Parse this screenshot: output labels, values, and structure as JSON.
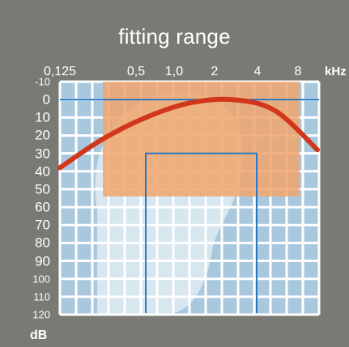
{
  "title": "fitting range",
  "x_axis": {
    "labels": [
      "0,125",
      "0,5",
      "1,0",
      "2",
      "4",
      "8"
    ],
    "unit": "kHz"
  },
  "y_axis": {
    "labels": [
      "-10",
      "0",
      "10",
      "20",
      "30",
      "40",
      "50",
      "60",
      "70",
      "80",
      "90",
      "100",
      "110",
      "120"
    ],
    "unit": "dB"
  },
  "colors": {
    "background": "#7a7a74",
    "grid_cell": "#a9c8dd",
    "fitting_range": "#f0a46c",
    "curve": "#d2361b",
    "lines": "#2a78c0"
  },
  "fitting_range": {
    "freq_khz": [
      0.25,
      6
    ],
    "level_db": [
      -10,
      54
    ]
  },
  "reference_line_db": 0,
  "ear_canal_bracket": {
    "freq_khz": [
      0.5,
      3
    ],
    "top_db": 30,
    "bottom_db": 120
  },
  "curve_points": [
    [
      0.125,
      38
    ],
    [
      0.25,
      22
    ],
    [
      0.5,
      10
    ],
    [
      1,
      2
    ],
    [
      2,
      0
    ],
    [
      4,
      6
    ],
    [
      8,
      28
    ]
  ]
}
